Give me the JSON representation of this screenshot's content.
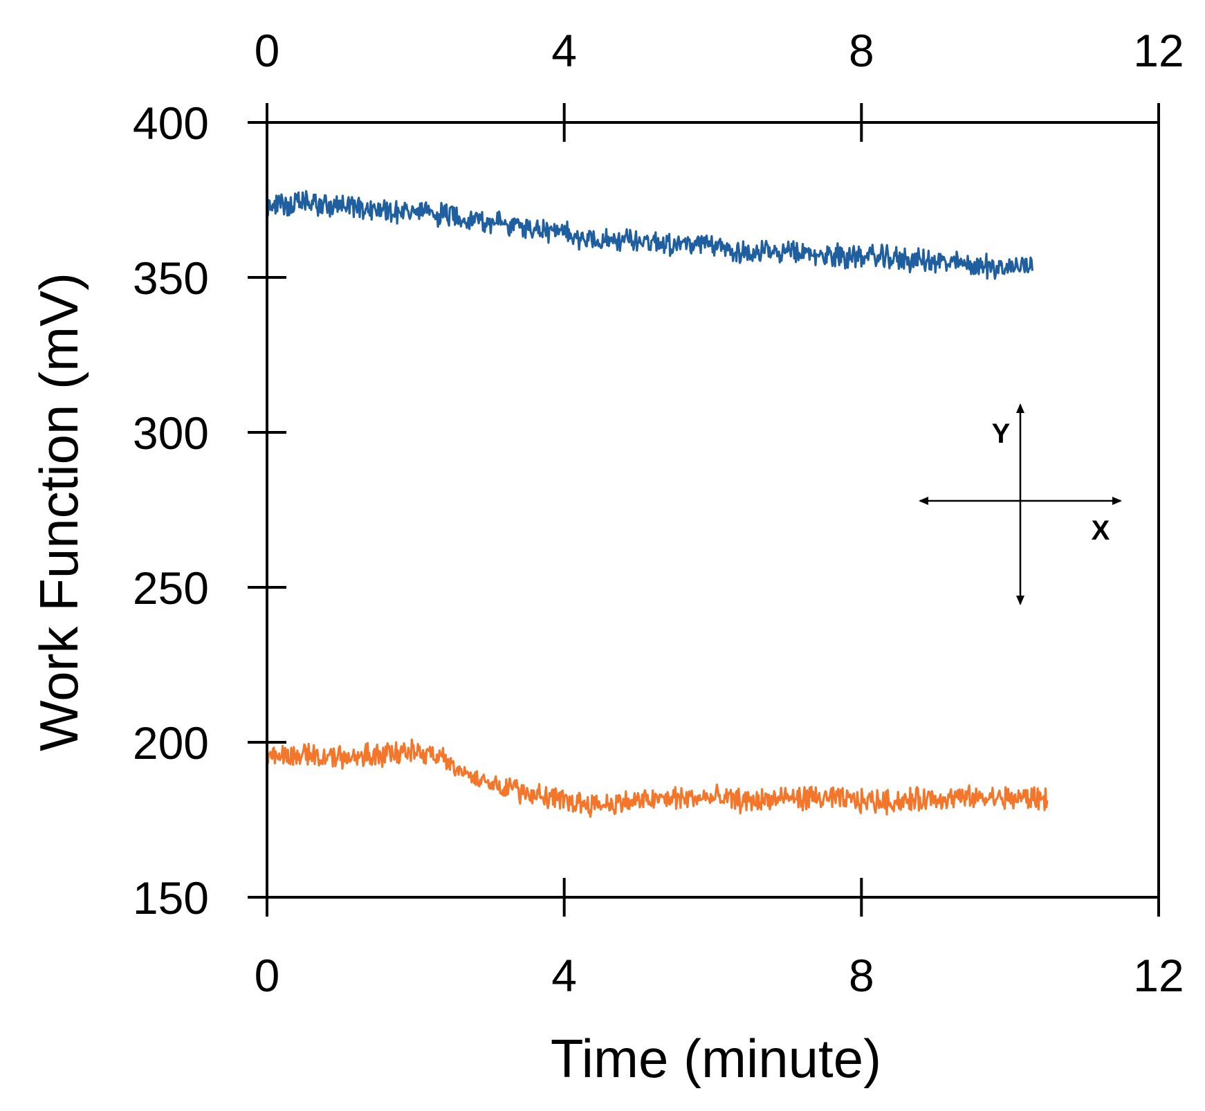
{
  "chart_data": {
    "type": "line",
    "title": "",
    "xlabel": "Time (minute)",
    "ylabel": "Work Function (mV)",
    "xlim": [
      0,
      12
    ],
    "ylim": [
      150,
      400
    ],
    "xticks": [
      0,
      4,
      8,
      12
    ],
    "yticks": [
      150,
      200,
      250,
      300,
      350,
      400
    ],
    "x_tick_labels": [
      "0",
      "4",
      "8",
      "12"
    ],
    "y_tick_labels": [
      "150",
      "200",
      "250",
      "300",
      "350",
      "400"
    ],
    "top_axis_ticks": true,
    "grid": false,
    "legend": "none",
    "series": [
      {
        "color": "#1f5fa0",
        "x": [
          0,
          0.5,
          1,
          1.5,
          2,
          2.5,
          3,
          3.5,
          4,
          4.5,
          5,
          5.5,
          6,
          6.5,
          7,
          7.5,
          8,
          8.5,
          9,
          9.5,
          10,
          10.3
        ],
        "y": [
          373,
          374,
          373,
          372,
          371,
          370,
          368,
          366,
          364,
          362,
          362,
          361,
          360,
          358,
          358,
          357,
          357,
          356,
          355,
          354,
          353,
          355
        ]
      },
      {
        "color": "#f4762a",
        "x": [
          0,
          0.5,
          1,
          1.5,
          2,
          2.2,
          2.5,
          3,
          3.5,
          4,
          4.5,
          5,
          5.5,
          6,
          6.5,
          7,
          7.5,
          8,
          8.5,
          9,
          9.5,
          10,
          10.5
        ],
        "y": [
          196,
          196,
          195,
          196,
          197,
          197,
          192,
          187,
          184,
          181,
          180,
          181,
          182,
          182,
          181,
          182,
          182,
          181,
          181,
          182,
          182,
          182,
          182
        ]
      }
    ],
    "inset": {
      "x_label": "X",
      "y_label": "Y"
    }
  }
}
